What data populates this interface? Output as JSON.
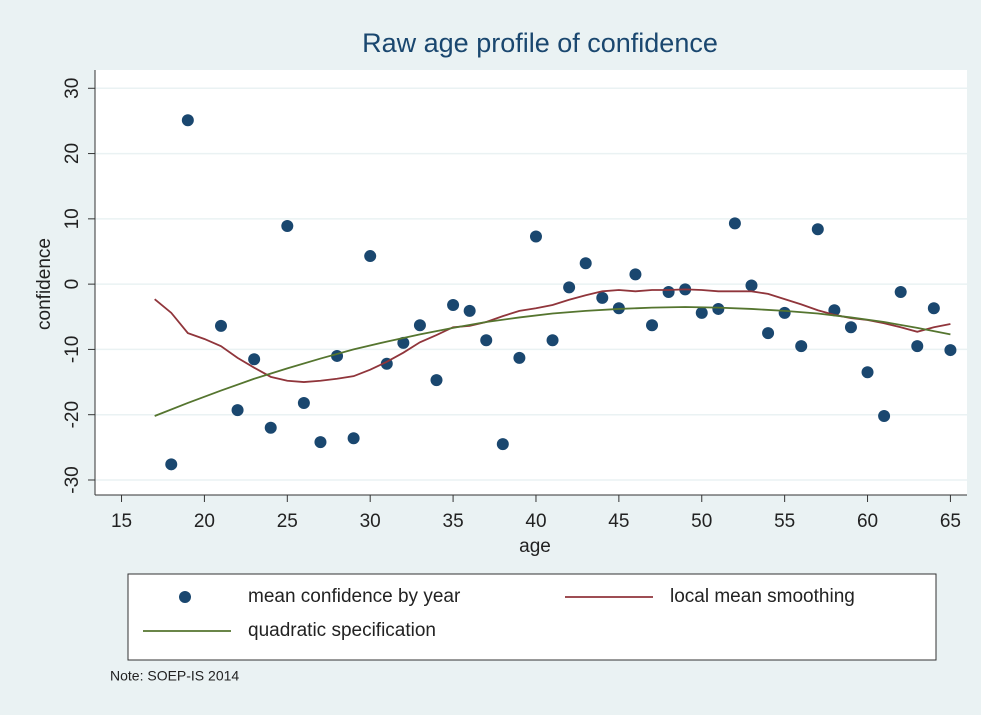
{
  "chart_data": {
    "type": "scatter",
    "title": "Raw age profile of confidence",
    "x_label": "age",
    "y_label": "confidence",
    "note": "Note: SOEP-IS 2014",
    "xlim": [
      13.4,
      66
    ],
    "ylim": [
      -32.3,
      32.8
    ],
    "xticks": [
      15,
      20,
      25,
      30,
      35,
      40,
      45,
      50,
      55,
      60,
      65
    ],
    "yticks": [
      -30,
      -20,
      -10,
      0,
      10,
      20,
      30
    ],
    "grid": true,
    "legend_position": "bottom",
    "series": [
      {
        "name": "mean confidence by year",
        "type": "scatter",
        "color": "#1a476f",
        "x": [
          18,
          19,
          21,
          22,
          23,
          24,
          25,
          26,
          27,
          28,
          29,
          30,
          31,
          32,
          33,
          34,
          35,
          36,
          37,
          38,
          39,
          40,
          41,
          42,
          43,
          44,
          45,
          46,
          47,
          48,
          49,
          50,
          51,
          52,
          53,
          54,
          55,
          56,
          57,
          58,
          59,
          60,
          61,
          62,
          63,
          64,
          65
        ],
        "values": [
          -27.6,
          25.1,
          -6.4,
          -19.3,
          -11.5,
          -22,
          8.9,
          -18.2,
          -24.2,
          -11,
          -23.6,
          4.3,
          -12.2,
          -9.0,
          -6.3,
          -14.7,
          -3.2,
          -4.1,
          -8.6,
          -24.5,
          -11.3,
          7.3,
          -8.6,
          -0.5,
          3.2,
          -2.1,
          -3.7,
          1.5,
          -6.3,
          -1.2,
          -0.8,
          -4.4,
          -3.8,
          9.3,
          -0.2,
          -7.5,
          -4.4,
          -9.5,
          8.4,
          -4.0,
          -6.6,
          -13.5,
          -20.2,
          -1.2,
          -9.5,
          -3.7,
          -10.1
        ]
      },
      {
        "name": "local mean smoothing",
        "type": "line",
        "color": "#90353b",
        "x": [
          17,
          18,
          19,
          20,
          21,
          22,
          23,
          24,
          25,
          26,
          27,
          28,
          29,
          30,
          31,
          32,
          33,
          34,
          35,
          36,
          37,
          38,
          39,
          40,
          41,
          42,
          43,
          44,
          45,
          46,
          47,
          48,
          49,
          50,
          51,
          52,
          53,
          54,
          55,
          56,
          57,
          58,
          59,
          60,
          61,
          62,
          63,
          64,
          65
        ],
        "values": [
          -2.3,
          -4.4,
          -7.5,
          -8.4,
          -9.5,
          -11.3,
          -12.8,
          -14.2,
          -14.8,
          -15.0,
          -14.8,
          -14.5,
          -14.1,
          -13.1,
          -11.9,
          -10.5,
          -8.9,
          -7.8,
          -6.6,
          -6.4,
          -5.8,
          -4.9,
          -4.1,
          -3.7,
          -3.2,
          -2.4,
          -1.7,
          -1.1,
          -0.9,
          -1.1,
          -0.9,
          -0.9,
          -0.8,
          -0.9,
          -1.1,
          -1.1,
          -1.1,
          -1.5,
          -2.3,
          -3.1,
          -4.0,
          -4.7,
          -5.2,
          -5.5,
          -6.0,
          -6.6,
          -7.3,
          -6.6,
          -6.1
        ]
      },
      {
        "name": "quadratic specification",
        "type": "line",
        "color": "#55752f",
        "x": [
          17,
          19,
          21,
          23,
          25,
          27,
          29,
          31,
          33,
          35,
          37,
          39,
          41,
          43,
          45,
          47,
          49,
          51,
          53,
          55,
          57,
          59,
          61,
          63,
          65
        ],
        "values": [
          -20.2,
          -18.2,
          -16.3,
          -14.5,
          -12.9,
          -11.4,
          -10.0,
          -8.8,
          -7.7,
          -6.7,
          -5.8,
          -5.1,
          -4.5,
          -4.1,
          -3.8,
          -3.6,
          -3.5,
          -3.6,
          -3.8,
          -4.1,
          -4.5,
          -5.1,
          -5.8,
          -6.7,
          -7.7
        ]
      }
    ]
  }
}
